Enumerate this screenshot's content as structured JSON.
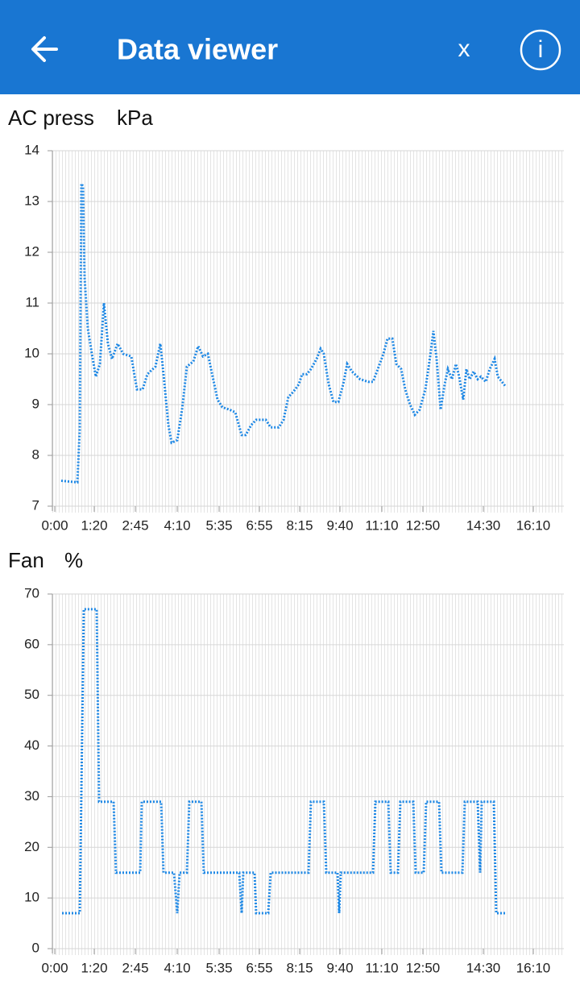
{
  "header": {
    "title": "Data viewer",
    "close": "x",
    "info": "i"
  },
  "chart_data": [
    {
      "type": "line",
      "title": "AC press",
      "unit": "kPa",
      "color": "#1e88e5",
      "grid": true,
      "xlim": [
        -3,
        632
      ],
      "xticks": [
        {
          "value": 0,
          "label": "0:00"
        },
        {
          "value": 49,
          "label": "1:20"
        },
        {
          "value": 100,
          "label": "2:45"
        },
        {
          "value": 152,
          "label": "4:10"
        },
        {
          "value": 204,
          "label": "5:35"
        },
        {
          "value": 254,
          "label": "6:55"
        },
        {
          "value": 304,
          "label": "8:15"
        },
        {
          "value": 354,
          "label": "9:40"
        },
        {
          "value": 406,
          "label": "11:10"
        },
        {
          "value": 457,
          "label": "12:50"
        },
        {
          "value": 532,
          "label": "14:30"
        },
        {
          "value": 594,
          "label": "16:10"
        }
      ],
      "ylim": [
        7,
        14
      ],
      "yticks": [
        7,
        8,
        9,
        10,
        11,
        12,
        13,
        14
      ],
      "x": [
        8,
        28,
        31,
        33,
        35,
        37,
        41,
        46,
        51,
        56,
        61,
        66,
        71,
        78,
        85,
        95,
        102,
        109,
        115,
        125,
        131,
        135,
        141,
        145,
        152,
        158,
        164,
        172,
        178,
        184,
        190,
        196,
        202,
        208,
        217,
        224,
        232,
        237,
        244,
        250,
        262,
        268,
        278,
        284,
        290,
        296,
        303,
        307,
        313,
        318,
        325,
        330,
        334,
        340,
        346,
        352,
        358,
        363,
        369,
        379,
        389,
        395,
        401,
        408,
        413,
        419,
        424,
        430,
        435,
        441,
        447,
        453,
        460,
        466,
        470,
        474,
        479,
        484,
        488,
        493,
        498,
        502,
        507,
        511,
        515,
        520,
        525,
        529,
        535,
        540,
        546,
        550,
        560
      ],
      "values": [
        7.5,
        7.47,
        8.5,
        13.35,
        13.3,
        11.5,
        10.5,
        10.0,
        9.55,
        9.8,
        11.0,
        10.2,
        9.9,
        10.2,
        10.0,
        9.95,
        9.3,
        9.3,
        9.6,
        9.75,
        10.2,
        9.6,
        8.6,
        8.25,
        8.3,
        8.9,
        9.75,
        9.85,
        10.15,
        9.95,
        10.0,
        9.55,
        9.1,
        8.95,
        8.9,
        8.85,
        8.4,
        8.4,
        8.6,
        8.7,
        8.7,
        8.55,
        8.55,
        8.7,
        9.15,
        9.25,
        9.4,
        9.6,
        9.6,
        9.7,
        9.9,
        10.1,
        10.0,
        9.4,
        9.05,
        9.05,
        9.4,
        9.8,
        9.65,
        9.5,
        9.45,
        9.45,
        9.7,
        10.0,
        10.3,
        10.3,
        9.8,
        9.7,
        9.3,
        9.0,
        8.8,
        8.9,
        9.3,
        9.95,
        10.45,
        9.9,
        8.9,
        9.4,
        9.7,
        9.5,
        9.8,
        9.55,
        9.1,
        9.7,
        9.5,
        9.65,
        9.5,
        9.55,
        9.45,
        9.7,
        9.9,
        9.55,
        9.35
      ]
    },
    {
      "type": "line",
      "title": "Fan",
      "unit": "%",
      "color": "#1e88e5",
      "grid": true,
      "xlim": [
        -3,
        632
      ],
      "xticks": [
        {
          "value": 0,
          "label": "0:00"
        },
        {
          "value": 49,
          "label": "1:20"
        },
        {
          "value": 100,
          "label": "2:45"
        },
        {
          "value": 152,
          "label": "4:10"
        },
        {
          "value": 204,
          "label": "5:35"
        },
        {
          "value": 254,
          "label": "6:55"
        },
        {
          "value": 304,
          "label": "8:15"
        },
        {
          "value": 354,
          "label": "9:40"
        },
        {
          "value": 406,
          "label": "11:10"
        },
        {
          "value": 457,
          "label": "12:50"
        },
        {
          "value": 532,
          "label": "14:30"
        },
        {
          "value": 594,
          "label": "16:10"
        }
      ],
      "ylim": [
        0,
        70
      ],
      "yticks": [
        0,
        10,
        20,
        30,
        40,
        50,
        60,
        70
      ],
      "x": [
        9,
        31,
        36,
        52,
        55,
        73,
        76,
        106,
        108,
        132,
        135,
        148,
        152,
        155,
        164,
        167,
        182,
        185,
        229,
        232,
        234,
        248,
        250,
        265,
        268,
        315,
        318,
        334,
        337,
        351,
        353,
        355,
        395,
        398,
        414,
        417,
        426,
        429,
        445,
        448,
        458,
        461,
        477,
        480,
        506,
        509,
        525,
        528,
        530,
        545,
        548,
        560
      ],
      "values": [
        7,
        7,
        67,
        67,
        29,
        29,
        15,
        15,
        29,
        29,
        15,
        15,
        7,
        15,
        15,
        29,
        29,
        15,
        15,
        7,
        15,
        15,
        7,
        7,
        15,
        15,
        29,
        29,
        15,
        15,
        7,
        15,
        15,
        29,
        29,
        15,
        15,
        29,
        29,
        15,
        15,
        29,
        29,
        15,
        15,
        29,
        29,
        15,
        29,
        29,
        7,
        7
      ]
    }
  ]
}
